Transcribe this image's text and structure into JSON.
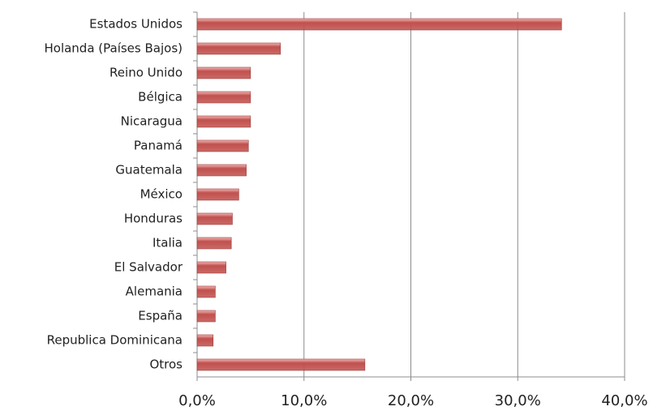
{
  "chart_data": {
    "type": "bar",
    "orientation": "horizontal",
    "categories": [
      "Estados Unidos",
      "Holanda (Países Bajos)",
      "Reino Unido",
      "Bélgica",
      "Nicaragua",
      "Panamá",
      "Guatemala",
      "México",
      "Honduras",
      "Italia",
      "El Salvador",
      "Alemania",
      "España",
      "Republica Dominicana",
      "Otros"
    ],
    "values": [
      34.1,
      7.8,
      5.0,
      5.0,
      5.0,
      4.8,
      4.6,
      3.9,
      3.3,
      3.2,
      2.7,
      1.7,
      1.7,
      1.5,
      15.7
    ],
    "color": "#c0504d",
    "xlim": [
      0,
      40
    ],
    "xticks": [
      {
        "value": 0,
        "label": "0,0%"
      },
      {
        "value": 10,
        "label": "10,0%"
      },
      {
        "value": 20,
        "label": "20,0%"
      },
      {
        "value": 30,
        "label": "30,0%"
      },
      {
        "value": 40,
        "label": "40,0%"
      }
    ],
    "grid": true
  }
}
